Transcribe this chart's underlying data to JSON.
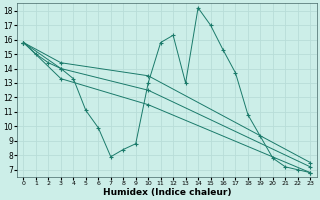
{
  "bg_color": "#cceee8",
  "grid_color": "#b8ddd8",
  "line_color": "#1a7a6a",
  "xlabel": "Humidex (Indice chaleur)",
  "xlim": [
    -0.5,
    23.5
  ],
  "ylim": [
    6.5,
    18.5
  ],
  "xticks": [
    0,
    1,
    2,
    3,
    4,
    5,
    6,
    7,
    8,
    9,
    10,
    11,
    12,
    13,
    14,
    15,
    16,
    17,
    18,
    19,
    20,
    21,
    22,
    23
  ],
  "yticks": [
    7,
    8,
    9,
    10,
    11,
    12,
    13,
    14,
    15,
    16,
    17,
    18
  ],
  "curves": [
    {
      "x": [
        0,
        1,
        2,
        3,
        4,
        5,
        6,
        7,
        8,
        9,
        10,
        11,
        12,
        13,
        14,
        15,
        16,
        17,
        18,
        19,
        20,
        21,
        22,
        23
      ],
      "y": [
        15.8,
        15.0,
        14.4,
        14.0,
        13.3,
        11.1,
        9.9,
        7.9,
        8.4,
        8.8,
        13.0,
        15.8,
        16.3,
        13.0,
        18.2,
        17.0,
        15.3,
        13.7,
        10.8,
        9.3,
        7.8,
        7.2,
        7.0,
        6.8
      ]
    },
    {
      "x": [
        0,
        3,
        10,
        23
      ],
      "y": [
        15.8,
        14.4,
        13.5,
        7.5
      ]
    },
    {
      "x": [
        0,
        3,
        10,
        23
      ],
      "y": [
        15.8,
        14.0,
        12.5,
        7.2
      ]
    },
    {
      "x": [
        0,
        3,
        10,
        23
      ],
      "y": [
        15.8,
        13.3,
        11.5,
        6.8
      ]
    }
  ],
  "ytick_fontsize": 5.5,
  "xtick_fontsize": 4.5,
  "xlabel_fontsize": 6.5
}
